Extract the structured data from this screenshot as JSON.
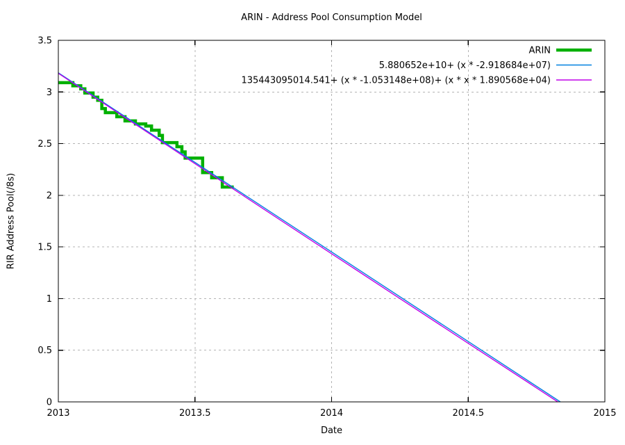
{
  "chart_data": {
    "type": "line",
    "title": "ARIN - Address Pool Consumption Model",
    "xlabel": "Date",
    "ylabel": "RIR Address Pool(/8s)",
    "xlim": [
      2013,
      2015
    ],
    "ylim": [
      0,
      3.5
    ],
    "xticks": [
      2013,
      2013.5,
      2014,
      2014.5,
      2015
    ],
    "xtick_labels": [
      "2013",
      "2013.5",
      "2014",
      "2014.5",
      "2015"
    ],
    "yticks": [
      0,
      0.5,
      1,
      1.5,
      2,
      2.5,
      3,
      3.5
    ],
    "ytick_labels": [
      "0",
      "0.5",
      "1",
      "1.5",
      "2",
      "2.5",
      "3",
      "3.5"
    ],
    "grid": true,
    "legend_position": "top-right-inside",
    "series": [
      {
        "name": "ARIN",
        "type": "step-post",
        "color": "#00b000",
        "width": 4.5,
        "points": [
          [
            2013.0,
            3.09
          ],
          [
            2013.053,
            3.06
          ],
          [
            2013.082,
            3.03
          ],
          [
            2013.097,
            2.99
          ],
          [
            2013.127,
            2.95
          ],
          [
            2013.144,
            2.92
          ],
          [
            2013.159,
            2.84
          ],
          [
            2013.172,
            2.8
          ],
          [
            2013.214,
            2.76
          ],
          [
            2013.244,
            2.72
          ],
          [
            2013.282,
            2.69
          ],
          [
            2013.32,
            2.67
          ],
          [
            2013.341,
            2.63
          ],
          [
            2013.369,
            2.58
          ],
          [
            2013.381,
            2.51
          ],
          [
            2013.434,
            2.47
          ],
          [
            2013.452,
            2.42
          ],
          [
            2013.464,
            2.36
          ],
          [
            2013.528,
            2.22
          ],
          [
            2013.561,
            2.17
          ],
          [
            2013.6,
            2.08
          ],
          [
            2013.642,
            2.08
          ]
        ]
      },
      {
        "name": "5.880652e+10+ (x * -2.918684e+07)",
        "type": "line",
        "color": "#0080e0",
        "width": 1.4,
        "points": [
          [
            2013.0,
            3.186
          ],
          [
            2014.837,
            0.0
          ]
        ]
      },
      {
        "name": "135443095014.541+ (x * -1.053148e+08)+ (x * x * 1.890568e+04)",
        "type": "line",
        "color": "#c000e8",
        "width": 1.4,
        "points": [
          [
            2013.0,
            3.181
          ],
          [
            2013.25,
            2.743
          ],
          [
            2013.5,
            2.306
          ],
          [
            2013.75,
            1.869
          ],
          [
            2014.0,
            1.434
          ],
          [
            2014.25,
            1.0
          ],
          [
            2014.5,
            0.567
          ],
          [
            2014.75,
            0.135
          ],
          [
            2014.828,
            0.0
          ]
        ]
      }
    ],
    "colors": {
      "background": "#ffffff",
      "axis": "#000000",
      "grid": "#b3b3b3",
      "text": "#000000"
    }
  }
}
